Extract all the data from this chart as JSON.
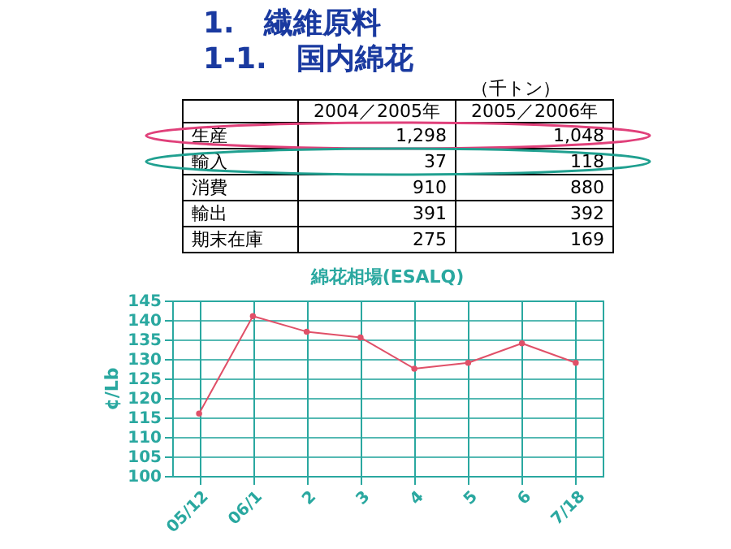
{
  "chart_data": [
    {
      "type": "other",
      "title": "1.　繊維原料",
      "subtitle": "1-1.　国内綿花",
      "annotations": [
        "（千トン）",
        "2004／2005年",
        "2005／2006年",
        "生産",
        "1,298",
        "1,048",
        "輸入",
        "37",
        "118",
        "消費",
        "910",
        "880",
        "輸出",
        "391",
        "392",
        "期末在庫",
        "275",
        "169"
      ]
    },
    {
      "type": "line",
      "title": "綿花相場(ESALQ)",
      "ylabel": "¢/Lb",
      "categories": [
        "05/12",
        "06/1",
        "2",
        "3",
        "4",
        "5",
        "6",
        "7/18"
      ],
      "series": [
        {
          "color": "#e05068",
          "values": [
            116,
            141,
            137,
            135.5,
            127.5,
            129,
            134,
            129
          ]
        }
      ],
      "ylim": [
        100,
        145
      ],
      "yticks": [
        100,
        105,
        110,
        115,
        120,
        125,
        130,
        135,
        140,
        145
      ],
      "grid": true,
      "marker": "circle"
    }
  ]
}
